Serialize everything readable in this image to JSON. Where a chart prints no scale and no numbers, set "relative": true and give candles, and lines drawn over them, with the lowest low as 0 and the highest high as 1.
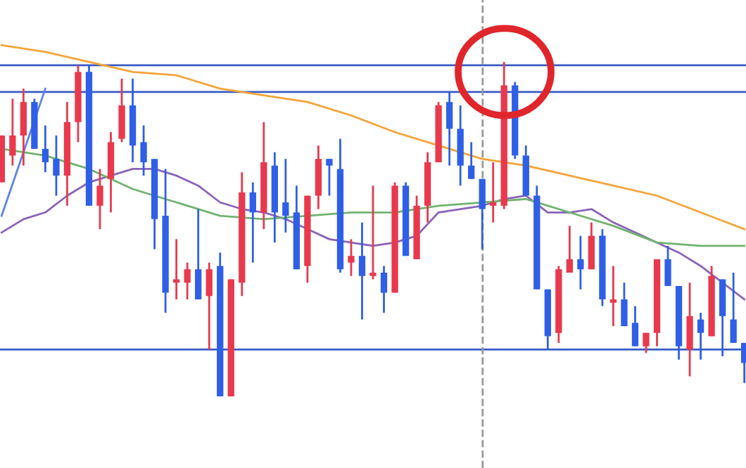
{
  "chart_data": {
    "type": "candlestick",
    "relative": true,
    "categories": [
      null,
      null,
      null,
      null,
      null,
      null,
      null,
      null,
      null,
      null,
      null,
      null,
      null,
      null,
      null,
      null,
      null,
      null,
      null,
      null,
      null,
      null,
      null,
      null,
      null,
      null,
      null,
      null,
      null,
      null,
      null,
      null,
      null,
      null,
      null,
      null,
      null,
      null,
      null,
      null,
      null,
      null,
      null,
      null,
      null,
      null,
      null,
      null,
      null,
      null,
      null,
      null,
      null,
      null,
      null,
      null,
      null,
      null,
      null,
      null,
      null,
      null,
      null,
      null,
      null,
      null,
      null,
      null,
      null
    ],
    "colors": [
      "#e8394d",
      "#e8394d",
      "#e8394d",
      "#2f5fe6",
      "#2f5fe6",
      "#2f5fe6",
      "#e8394d",
      "#e8394d",
      "#2f5fe6",
      "#e8394d",
      "#e8394d",
      "#e8394d",
      "#2f5fe6",
      "#2f5fe6",
      "#2f5fe6",
      "#2f5fe6",
      "#e8394d",
      "#e8394d",
      "#2f5fe6",
      "#e8394d",
      "#2f5fe6",
      "#e8394d",
      "#e8394d",
      "#2f5fe6",
      "#e8394d",
      "#2f5fe6",
      "#2f5fe6",
      "#2f5fe6",
      "#e8394d",
      "#e8394d",
      "#2f5fe6",
      "#2f5fe6",
      "#e8394d",
      "#2f5fe6",
      "#e8394d",
      "#2f5fe6",
      "#e8394d",
      "#2f5fe6",
      "#e8394d",
      "#e8394d",
      "#e8394d",
      "#2f5fe6",
      "#2f5fe6",
      "#2f5fe6",
      "#2f5fe6",
      "#e8394d",
      "#e8394d",
      "#2f5fe6",
      "#2f5fe6",
      "#2f5fe6",
      "#2f5fe6",
      "#e8394d",
      "#e8394d",
      "#2f5fe6",
      "#e8394d",
      "#2f5fe6",
      "#e8394d",
      "#2f5fe6",
      "#2f5fe6",
      "#e8394d",
      "#e8394d",
      "#2f5fe6",
      "#2f5fe6",
      "#e8394d",
      "#2f5fe6",
      "#e8394d",
      "#2f5fe6",
      "#2f5fe6",
      "#2f5fe6"
    ],
    "ohlc": [
      [
        0.64,
        0.78,
        0.64,
        0.78
      ],
      [
        0.72,
        0.89,
        0.69,
        0.78
      ],
      [
        0.78,
        0.92,
        0.69,
        0.88
      ],
      [
        0.88,
        0.89,
        0.74,
        0.74
      ],
      [
        0.74,
        0.81,
        0.67,
        0.7
      ],
      [
        0.71,
        0.78,
        0.6,
        0.66
      ],
      [
        0.66,
        0.88,
        0.57,
        0.82
      ],
      [
        0.82,
        0.99,
        0.76,
        0.97
      ],
      [
        0.97,
        0.99,
        0.57,
        0.57
      ],
      [
        0.57,
        0.68,
        0.5,
        0.63
      ],
      [
        0.65,
        0.79,
        0.55,
        0.76
      ],
      [
        0.77,
        0.95,
        0.76,
        0.87
      ],
      [
        0.87,
        0.95,
        0.7,
        0.75
      ],
      [
        0.76,
        0.81,
        0.66,
        0.7
      ],
      [
        0.71,
        0.71,
        0.44,
        0.53
      ],
      [
        0.54,
        0.68,
        0.25,
        0.31
      ],
      [
        0.34,
        0.47,
        0.29,
        0.35
      ],
      [
        0.34,
        0.4,
        0.29,
        0.38
      ],
      [
        0.38,
        0.56,
        0.29,
        0.29
      ],
      [
        0.3,
        0.4,
        0.14,
        0.38
      ],
      [
        0.39,
        0.43,
        0,
        0
      ],
      [
        0,
        0.35,
        0,
        0.35
      ],
      [
        0.34,
        0.67,
        0.3,
        0.61
      ],
      [
        0.61,
        0.64,
        0.4,
        0.55
      ],
      [
        0.55,
        0.82,
        0.5,
        0.7
      ],
      [
        0.69,
        0.73,
        0.46,
        0.55
      ],
      [
        0.58,
        0.71,
        0.49,
        0.54
      ],
      [
        0.55,
        0.63,
        0.38,
        0.38
      ],
      [
        0.39,
        0.6,
        0.34,
        0.6
      ],
      [
        0.6,
        0.75,
        0.56,
        0.71
      ],
      [
        0.71,
        0.71,
        0.6,
        0.69
      ],
      [
        0.68,
        0.77,
        0.37,
        0.38
      ],
      [
        0.4,
        0.47,
        0.36,
        0.42
      ],
      [
        0.42,
        0.52,
        0.23,
        0.36
      ],
      [
        0.36,
        0.63,
        0.35,
        0.37
      ],
      [
        0.37,
        0.39,
        0.25,
        0.31
      ],
      [
        0.31,
        0.64,
        0.31,
        0.63
      ],
      [
        0.63,
        0.64,
        0.42,
        0.42
      ],
      [
        0.41,
        0.6,
        0.41,
        0.57
      ],
      [
        0.57,
        0.73,
        0.52,
        0.7
      ],
      [
        0.7,
        0.88,
        0.7,
        0.87
      ],
      [
        0.88,
        0.91,
        0.69,
        0.8
      ],
      [
        0.8,
        0.87,
        0.63,
        0.69
      ],
      [
        0.69,
        0.76,
        0.65,
        0.65
      ],
      [
        0.65,
        0.65,
        0.44,
        0.56
      ],
      [
        0.57,
        0.7,
        0.52,
        0.58
      ],
      [
        0.57,
        1.0,
        0.56,
        0.93
      ],
      [
        0.93,
        0.94,
        0.71,
        0.72
      ],
      [
        0.72,
        0.75,
        0.6,
        0.6
      ],
      [
        0.6,
        0.63,
        0.32,
        0.32
      ],
      [
        0.32,
        0.32,
        0.14,
        0.18
      ],
      [
        0.19,
        0.39,
        0.16,
        0.38
      ],
      [
        0.37,
        0.51,
        0.37,
        0.41
      ],
      [
        0.41,
        0.48,
        0.32,
        0.38
      ],
      [
        0.38,
        0.52,
        0.38,
        0.48
      ],
      [
        0.48,
        0.5,
        0.27,
        0.29
      ],
      [
        0.28,
        0.39,
        0.21,
        0.29
      ],
      [
        0.29,
        0.34,
        0.21,
        0.21
      ],
      [
        0.22,
        0.27,
        0.15,
        0.15
      ],
      [
        0.15,
        0.19,
        0.13,
        0.19
      ],
      [
        0.19,
        0.41,
        0.15,
        0.41
      ],
      [
        0.41,
        0.45,
        0.33,
        0.33
      ],
      [
        0.33,
        0.33,
        0.11,
        0.15
      ],
      [
        0.14,
        0.34,
        0.06,
        0.24
      ],
      [
        0.23,
        0.25,
        0.11,
        0.19
      ],
      [
        0.18,
        0.39,
        0.18,
        0.36
      ],
      [
        0.35,
        0.35,
        0.12,
        0.24
      ],
      [
        0.23,
        0.37,
        0.16,
        0.16
      ],
      [
        0.16,
        0.16,
        0.04,
        0.1
      ]
    ],
    "series": [
      {
        "type": "line",
        "color": "#f5a43a",
        "values": [
          1.05,
          null,
          null,
          null,
          1.03,
          null,
          null,
          null,
          1.0,
          null,
          null,
          null,
          0.97,
          null,
          null,
          null,
          0.96,
          null,
          null,
          null,
          0.92,
          null,
          null,
          null,
          0.9,
          null,
          null,
          null,
          0.88,
          null,
          null,
          null,
          0.84,
          null,
          null,
          null,
          0.79,
          null,
          null,
          null,
          0.75,
          null,
          null,
          null,
          0.71,
          null,
          null,
          null,
          0.69,
          null,
          null,
          null,
          0.66,
          null,
          null,
          null,
          0.63,
          null,
          null,
          null,
          0.6,
          null,
          null,
          null,
          0.55,
          null,
          null,
          null,
          0.5
        ]
      },
      {
        "type": "line",
        "color": "#8a63b8",
        "values": [
          0.49,
          null,
          0.53,
          null,
          0.55,
          null,
          0.6,
          null,
          0.64,
          null,
          0.66,
          null,
          0.68,
          null,
          0.68,
          null,
          0.66,
          null,
          0.63,
          null,
          0.58,
          null,
          0.56,
          null,
          0.55,
          null,
          0.53,
          null,
          0.5,
          null,
          0.47,
          null,
          0.46,
          null,
          0.45,
          null,
          0.46,
          null,
          0.48,
          null,
          0.55,
          null,
          0.56,
          null,
          0.57,
          null,
          0.59,
          null,
          0.6,
          null,
          0.55,
          null,
          0.55,
          null,
          0.56,
          null,
          0.52,
          null,
          0.49,
          null,
          0.46,
          null,
          0.43,
          null,
          0.39,
          null,
          0.34,
          null,
          0.29
        ]
      },
      {
        "type": "line",
        "color": "#6fb36f",
        "values": [
          0.74,
          null,
          null,
          null,
          0.72,
          null,
          null,
          null,
          0.68,
          null,
          null,
          null,
          0.62,
          null,
          null,
          null,
          0.58,
          null,
          null,
          null,
          0.54,
          null,
          null,
          null,
          0.53,
          null,
          null,
          null,
          0.54,
          null,
          null,
          null,
          0.55,
          null,
          null,
          null,
          0.55,
          null,
          null,
          null,
          0.57,
          null,
          null,
          null,
          0.58,
          null,
          null,
          null,
          0.59,
          null,
          null,
          null,
          0.55,
          null,
          null,
          null,
          0.51,
          null,
          null,
          null,
          0.46,
          null,
          null,
          null,
          0.45,
          null,
          null,
          null,
          0.45
        ]
      },
      {
        "type": "line",
        "color": "#5b82e6",
        "values": [
          0.54,
          null,
          null,
          null,
          0.92,
          null,
          null,
          null,
          null,
          null,
          null,
          null,
          null,
          null,
          null,
          null,
          null,
          null,
          null,
          null,
          null,
          null,
          null,
          null,
          null,
          null,
          null,
          null,
          null,
          null,
          null,
          null,
          null,
          null,
          null,
          null,
          null,
          null,
          null,
          null,
          null,
          null,
          null,
          null,
          null,
          null,
          null,
          null,
          null,
          null,
          null,
          null,
          null,
          null,
          null,
          null,
          null,
          null,
          null,
          null,
          null,
          null,
          null,
          null,
          null,
          null,
          null,
          null,
          null
        ]
      }
    ],
    "ref_lines": [
      {
        "axis": "y",
        "value": 0.99,
        "color": "#3a5cc4"
      },
      {
        "axis": "y",
        "value": 0.91,
        "color": "#3a5cc4"
      },
      {
        "axis": "y",
        "value": 0.14,
        "color": "#3a5cc4"
      }
    ]
  }
}
